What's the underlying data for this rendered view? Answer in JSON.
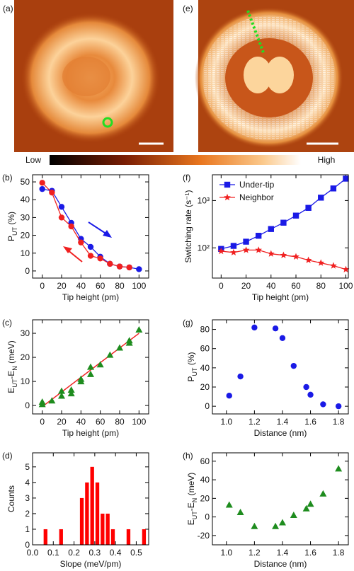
{
  "images": [
    {
      "label": "(a)"
    },
    {
      "label": "(e)"
    }
  ],
  "colorbar": {
    "low": "Low",
    "high": "High"
  },
  "chart_data": [
    {
      "type": "line",
      "panel_label": "(b)",
      "xlabel": "Tip height (pm)",
      "ylabel": [
        "P",
        "UT",
        " (%)"
      ],
      "x": [
        0,
        10,
        20,
        30,
        40,
        50,
        60,
        70,
        80,
        90,
        100
      ],
      "series": [
        {
          "color": "#1a1ae6",
          "marker": "circle",
          "values": [
            46,
            45,
            36,
            27,
            18,
            13.5,
            8,
            4,
            2.5,
            2,
            1
          ]
        },
        {
          "color": "#f02020",
          "marker": "circle",
          "values": [
            49.5,
            44,
            30,
            25,
            16,
            8.5,
            7,
            4,
            2.5,
            2,
            null
          ]
        }
      ],
      "xlim": [
        -10,
        110
      ],
      "xticks": [
        0,
        20,
        40,
        60,
        80,
        100
      ],
      "ylim": [
        -4,
        54
      ],
      "yticks": [
        0,
        10,
        20,
        30,
        40,
        50
      ]
    },
    {
      "type": "scatter",
      "panel_label": "(c)",
      "xlabel": "Tip height (pm)",
      "ylabel": [
        "E",
        "UT",
        "-E",
        "N",
        " (meV)"
      ],
      "x": [
        0,
        0,
        10,
        20,
        20,
        30,
        30,
        40,
        40,
        50,
        50,
        60,
        70,
        80,
        90,
        90,
        100
      ],
      "values": [
        0.5,
        1.5,
        2,
        4,
        6,
        5,
        6.5,
        10,
        11,
        13,
        16,
        17,
        21,
        24,
        26,
        27,
        31.5
      ],
      "color": "#1e8c1e",
      "marker": "triangle",
      "fit_x": [
        0,
        100
      ],
      "fit_y": [
        -0.5,
        30
      ],
      "fit_color": "#f02020",
      "xlim": [
        -10,
        110
      ],
      "xticks": [
        0,
        20,
        40,
        60,
        80,
        100
      ],
      "ylim": [
        -3.5,
        35.6
      ],
      "yticks": [
        0,
        10,
        20,
        30
      ]
    },
    {
      "type": "histogram",
      "panel_label": "(d)",
      "xlabel": "Slope (meV/pm)",
      "ylabel": [
        "Counts"
      ],
      "bins": [
        0.05,
        0.075,
        0.1,
        0.125,
        0.15,
        0.175,
        0.2,
        0.225,
        0.25,
        0.275,
        0.3,
        0.325,
        0.35,
        0.375,
        0.4,
        0.425,
        0.45,
        0.475,
        0.5,
        0.525,
        0.55
      ],
      "counts": [
        1,
        0,
        0,
        1,
        0,
        0,
        0,
        3,
        4,
        5,
        4,
        2,
        2,
        1,
        0,
        0,
        1,
        0,
        0,
        1
      ],
      "color": "#ff0000",
      "xlim": [
        0,
        0.56
      ],
      "xticks": [
        {
          "value": 0,
          "label": "0.0"
        },
        0.1,
        0.2,
        0.3,
        0.4,
        0.5
      ],
      "ylim": [
        0,
        5.9
      ],
      "yticks": [
        0,
        1,
        2,
        3,
        4,
        5
      ]
    },
    {
      "type": "line",
      "panel_label": "(f)",
      "xlabel": "Tip height (pm)",
      "ylabel": [
        "Switching rate (s⁻¹)"
      ],
      "x": [
        0,
        10,
        20,
        30,
        40,
        50,
        60,
        70,
        80,
        90,
        100
      ],
      "series": [
        {
          "name": "Under-tip",
          "color": "#1a1ae6",
          "marker": "square",
          "values": [
            95,
            110,
            135,
            180,
            250,
            340,
            480,
            700,
            1150,
            1800,
            2900
          ]
        },
        {
          "name": "Neighbor",
          "color": "#f02020",
          "marker": "star",
          "values": [
            85,
            80,
            90,
            90,
            75,
            70,
            65,
            55,
            48,
            42,
            35
          ]
        }
      ],
      "legend": "upper left",
      "log_y": true,
      "xlim": [
        -7,
        102
      ],
      "xticks": [
        0,
        20,
        40,
        60,
        80,
        100
      ],
      "ylim": [
        23,
        3500
      ],
      "yticks": [
        {
          "value": 100,
          "label": "10²"
        },
        {
          "value": 1000,
          "label": "10³"
        }
      ]
    },
    {
      "type": "scatter",
      "panel_label": "(g)",
      "xlabel": "Distance (nm)",
      "ylabel": [
        "P",
        "UT",
        " (%)"
      ],
      "x": [
        1.02,
        1.1,
        1.2,
        1.35,
        1.4,
        1.48,
        1.57,
        1.6,
        1.69,
        1.8
      ],
      "values": [
        11,
        31,
        82,
        81,
        71,
        42,
        20,
        12,
        2,
        0
      ],
      "color": "#1a1ae6",
      "marker": "circle",
      "xlim": [
        0.9,
        1.87
      ],
      "xticks": [
        {
          "value": 1,
          "label": "1.0"
        },
        1.2,
        1.4,
        1.6,
        1.8
      ],
      "ylim": [
        -8,
        90
      ],
      "yticks": [
        0,
        20,
        40,
        60,
        80
      ]
    },
    {
      "type": "scatter",
      "panel_label": "(h)",
      "xlabel": "Distance (nm)",
      "ylabel": [
        "E",
        "UT",
        "-E",
        "N",
        " (meV)"
      ],
      "x": [
        1.02,
        1.1,
        1.2,
        1.35,
        1.4,
        1.48,
        1.57,
        1.6,
        1.69,
        1.8
      ],
      "values": [
        13,
        5,
        -10,
        -10,
        -6,
        2,
        9,
        14,
        25,
        52
      ],
      "color": "#1e8c1e",
      "marker": "triangle",
      "xlim": [
        0.9,
        1.87
      ],
      "xticks": [
        {
          "value": 1,
          "label": "1.0"
        },
        1.2,
        1.4,
        1.6,
        1.8
      ],
      "ylim": [
        -30,
        69
      ],
      "yticks": [
        -20,
        0,
        20,
        40,
        60
      ]
    }
  ]
}
